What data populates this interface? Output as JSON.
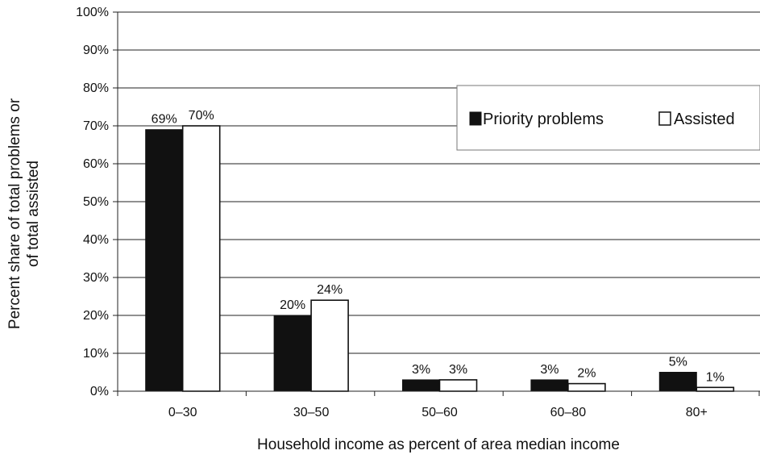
{
  "chart_data": {
    "type": "bar",
    "title": "",
    "xlabel": "Household income as percent of area median income",
    "ylabel_lines": [
      "Percent share of total problems or",
      "of total assisted"
    ],
    "categories": [
      "0–30",
      "30–50",
      "50–60",
      "60–80",
      "80+"
    ],
    "series": [
      {
        "name": "Priority problems",
        "values": [
          69,
          20,
          3,
          3,
          5
        ],
        "labels": [
          "69%",
          "20%",
          "3%",
          "3%",
          "5%"
        ],
        "color": "#111111"
      },
      {
        "name": "Assisted",
        "values": [
          70,
          24,
          3,
          2,
          1
        ],
        "labels": [
          "70%",
          "24%",
          "3%",
          "2%",
          "1%"
        ],
        "color": "#ffffff"
      }
    ],
    "ylim": [
      0,
      100
    ],
    "y_ticks": [
      0,
      10,
      20,
      30,
      40,
      50,
      60,
      70,
      80,
      90,
      100
    ],
    "y_tick_labels": [
      "0%",
      "10%",
      "20%",
      "30%",
      "40%",
      "50%",
      "60%",
      "70%",
      "80%",
      "90%",
      "100%"
    ],
    "grid": true,
    "legend_position": "top-right"
  }
}
